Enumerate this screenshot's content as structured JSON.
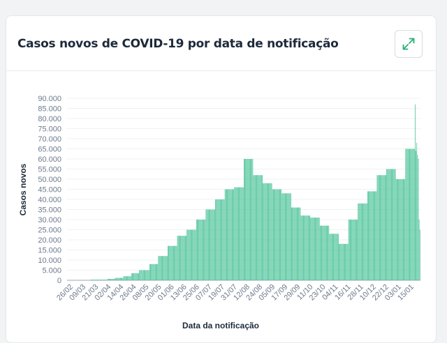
{
  "card": {
    "title": "Casos novos de COVID-19 por data de notificação",
    "expand_icon": "expand-arrows-icon"
  },
  "colors": {
    "bar": "#48c297",
    "accent": "#27ae77",
    "axis_text": "#6c7a8c",
    "title": "#1d2a3a"
  },
  "chart_data": {
    "type": "bar",
    "title": "",
    "xlabel": "Data da notificação",
    "ylabel": "Casos novos",
    "ylim": [
      0,
      90000
    ],
    "y_ticks": [
      "0",
      "5.000",
      "10.000",
      "15.000",
      "20.000",
      "25.000",
      "30.000",
      "35.000",
      "40.000",
      "45.000",
      "50.000",
      "55.000",
      "60.000",
      "65.000",
      "70.000",
      "75.000",
      "80.000",
      "85.000",
      "90.000"
    ],
    "x_tick_labels": [
      "26/02",
      "09/03",
      "21/03",
      "02/04",
      "14/04",
      "26/04",
      "08/05",
      "20/05",
      "01/06",
      "13/06",
      "25/06",
      "07/07",
      "19/07",
      "31/07",
      "12/08",
      "24/08",
      "05/09",
      "17/09",
      "29/09",
      "11/10",
      "23/10",
      "04/11",
      "16/11",
      "28/11",
      "10/12",
      "22/12",
      "03/01",
      "15/01"
    ],
    "start_date": "26/02",
    "values": [
      0,
      0,
      0,
      0,
      0,
      0,
      0,
      0,
      0,
      0,
      0,
      0,
      0,
      0,
      0,
      0,
      0,
      0,
      0,
      0,
      0,
      0,
      0,
      0,
      0,
      0,
      0,
      0,
      0,
      0,
      300,
      300,
      300,
      300,
      300,
      300,
      300,
      300,
      300,
      300,
      300,
      300,
      300,
      300,
      300,
      300,
      300,
      300,
      300,
      300,
      300,
      700,
      700,
      700,
      700,
      700,
      700,
      700,
      700,
      700,
      700,
      1200,
      1200,
      1200,
      1200,
      1200,
      1200,
      1200,
      1200,
      1200,
      1200,
      2000,
      2000,
      2000,
      2000,
      2000,
      2000,
      2000,
      2000,
      2000,
      2000,
      3500,
      3500,
      3500,
      3500,
      3500,
      3500,
      3500,
      3500,
      3500,
      3500,
      5000,
      5000,
      5000,
      5000,
      5000,
      5000,
      5000,
      5000,
      5000,
      5000,
      5000,
      5000,
      5000,
      8000,
      8000,
      8000,
      8000,
      8000,
      8000,
      8000,
      8000,
      8000,
      8000,
      8000,
      12000,
      12000,
      12000,
      12000,
      12000,
      12000,
      12000,
      12000,
      12000,
      12000,
      12000,
      12000,
      17000,
      17000,
      17000,
      17000,
      17000,
      17000,
      17000,
      17000,
      17000,
      17000,
      17000,
      17000,
      22000,
      22000,
      22000,
      22000,
      22000,
      22000,
      22000,
      22000,
      22000,
      22000,
      22000,
      22000,
      25000,
      25000,
      25000,
      25000,
      25000,
      25000,
      25000,
      25000,
      25000,
      25000,
      25000,
      25000,
      30000,
      30000,
      30000,
      30000,
      30000,
      30000,
      30000,
      30000,
      30000,
      30000,
      30000,
      30000,
      35000,
      35000,
      35000,
      35000,
      35000,
      35000,
      35000,
      35000,
      35000,
      35000,
      35000,
      35000,
      40000,
      40000,
      40000,
      40000,
      40000,
      40000,
      40000,
      40000,
      40000,
      40000,
      40000,
      40000,
      45000,
      45000,
      45000,
      45000,
      45000,
      45000,
      45000,
      45000,
      45000,
      45000,
      45000,
      45000,
      46000,
      46000,
      46000,
      46000,
      46000,
      46000,
      46000,
      46000,
      46000,
      46000,
      46000,
      46000,
      60000,
      60000,
      60000,
      60000,
      60000,
      60000,
      60000,
      60000,
      60000,
      60000,
      60000,
      60000,
      52000,
      52000,
      52000,
      52000,
      52000,
      52000,
      52000,
      52000,
      52000,
      52000,
      52000,
      52000,
      48000,
      48000,
      48000,
      48000,
      48000,
      48000,
      48000,
      48000,
      48000,
      48000,
      48000,
      48000,
      45000,
      45000,
      45000,
      45000,
      45000,
      45000,
      45000,
      45000,
      45000,
      45000,
      45000,
      45000,
      43000,
      43000,
      43000,
      43000,
      43000,
      43000,
      43000,
      43000,
      43000,
      43000,
      43000,
      43000,
      36000,
      36000,
      36000,
      36000,
      36000,
      36000,
      36000,
      36000,
      36000,
      36000,
      36000,
      36000,
      32000,
      32000,
      32000,
      32000,
      32000,
      32000,
      32000,
      32000,
      32000,
      32000,
      32000,
      32000,
      31000,
      31000,
      31000,
      31000,
      31000,
      31000,
      31000,
      31000,
      31000,
      31000,
      31000,
      31000,
      27000,
      27000,
      27000,
      27000,
      27000,
      27000,
      27000,
      27000,
      27000,
      27000,
      27000,
      27000,
      23000,
      23000,
      23000,
      23000,
      23000,
      23000,
      23000,
      23000,
      23000,
      23000,
      23000,
      23000,
      18000,
      18000,
      18000,
      18000,
      18000,
      18000,
      18000,
      18000,
      18000,
      18000,
      18000,
      18000,
      30000,
      30000,
      30000,
      30000,
      30000,
      30000,
      30000,
      30000,
      30000,
      30000,
      30000,
      30000,
      38000,
      38000,
      38000,
      38000,
      38000,
      38000,
      38000,
      38000,
      38000,
      38000,
      38000,
      38000,
      44000,
      44000,
      44000,
      44000,
      44000,
      44000,
      44000,
      44000,
      44000,
      44000,
      44000,
      44000,
      52000,
      52000,
      52000,
      52000,
      52000,
      52000,
      52000,
      52000,
      52000,
      52000,
      52000,
      52000,
      55000,
      55000,
      55000,
      55000,
      55000,
      55000,
      55000,
      55000,
      55000,
      55000,
      55000,
      55000,
      50000,
      50000,
      50000,
      50000,
      50000,
      50000,
      50000,
      50000,
      50000,
      50000,
      50000,
      50000,
      65000,
      65000,
      65000,
      65000,
      65000,
      65000,
      65000,
      65000,
      65000,
      65000,
      65000,
      65000,
      87000,
      64000,
      68000,
      62000,
      60000,
      30000,
      25000
    ]
  },
  "chart_labels": {
    "x_axis_title": "Data da notificação",
    "y_axis_title": "Casos novos"
  }
}
